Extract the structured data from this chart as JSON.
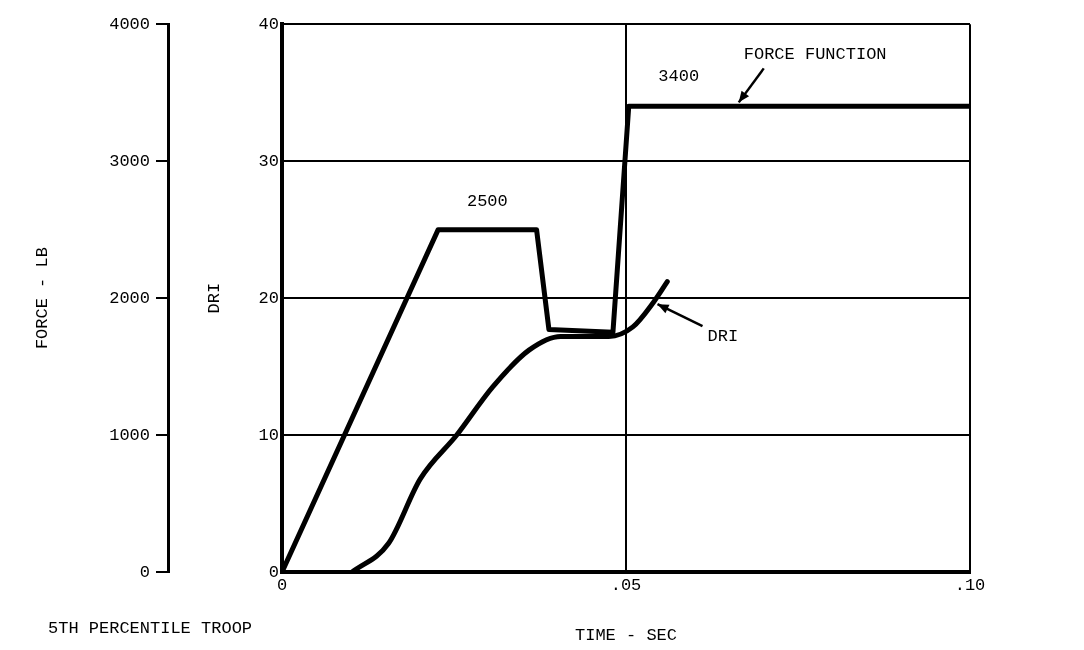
{
  "chart_data": {
    "type": "line",
    "xlabel": "TIME - SEC",
    "ylabel": "DRI",
    "y2label": "FORCE - LB",
    "xlim": [
      0,
      0.1
    ],
    "xticks": [
      0,
      {
        "value": 0.05,
        "label": ".05"
      },
      {
        "value": 0.1,
        "label": ".10"
      }
    ],
    "ylim": [
      0,
      40
    ],
    "yticks": [
      0,
      10,
      20,
      30,
      40
    ],
    "y2lim": [
      0,
      4000
    ],
    "y2ticks": [
      0,
      1000,
      2000,
      3000,
      4000
    ],
    "grid": true,
    "legend": false,
    "marker": "none",
    "line_style": "solid",
    "series": [
      {
        "name": "FORCE FUNCTION",
        "color": "#000000",
        "axis": "y2",
        "x": [
          0,
          0.0227,
          0.037,
          0.0388,
          0.0481,
          0.0504,
          0.1
        ],
        "values": [
          0,
          2500,
          2500,
          1770,
          1750,
          3400,
          3400
        ]
      },
      {
        "name": "DRI",
        "color": "#000000",
        "x": [
          0.0102,
          0.0155,
          0.0201,
          0.0254,
          0.0306,
          0.0359,
          0.0405,
          0.0475,
          0.051,
          0.054,
          0.056
        ],
        "values": [
          0,
          2.1,
          6.8,
          10,
          13.5,
          16.2,
          17.2,
          17.2,
          17.9,
          19.7,
          21.2
        ]
      }
    ],
    "annotations": [
      "2500",
      "3400",
      "5TH PERCENTILE TROOP"
    ]
  }
}
